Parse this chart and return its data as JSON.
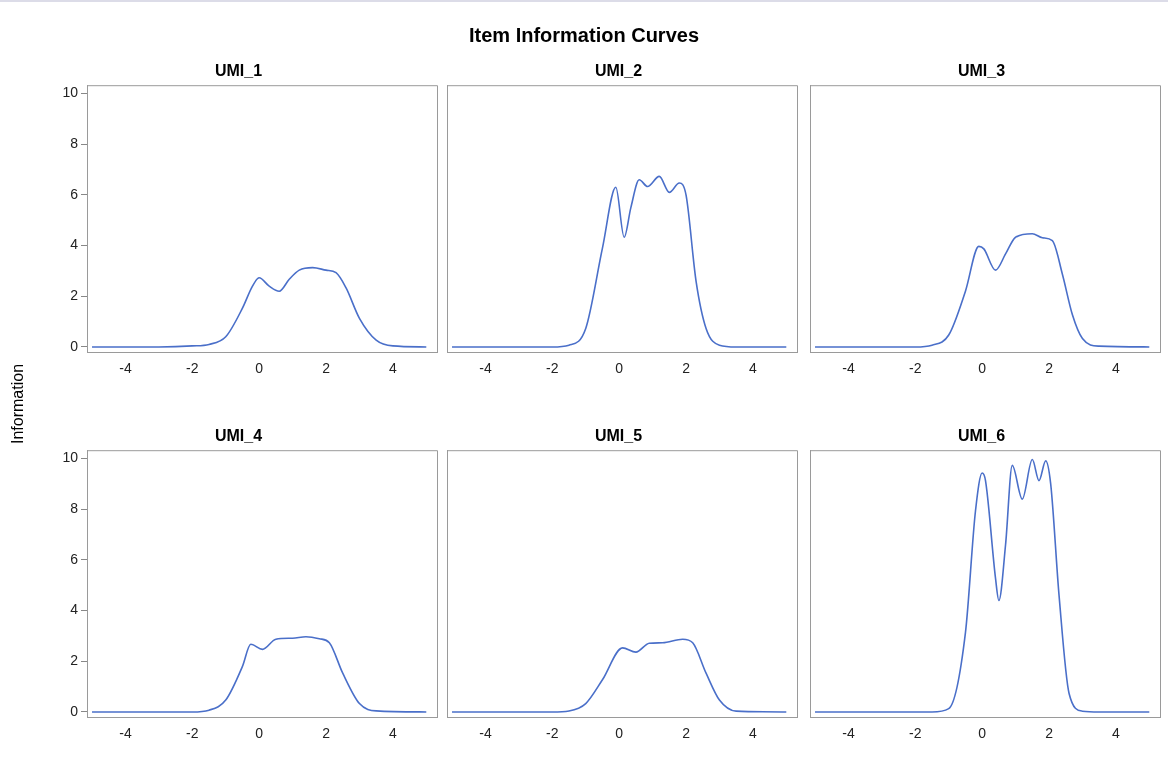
{
  "chart_data": [
    {
      "type": "line",
      "title": "UMI_1",
      "annotations": [
        "Item Information Curves"
      ],
      "ylabel": "Information",
      "color": "#4a6fc9",
      "grid": false,
      "legend": false,
      "marker": "none",
      "xlim": [
        -5.15,
        5.32
      ],
      "ylim": [
        -0.2,
        10.33
      ],
      "xticks": [
        -4,
        -2,
        0,
        2,
        4
      ],
      "yticks": [
        0,
        2,
        4,
        6,
        8,
        10
      ],
      "x": [
        -5,
        -3,
        -2,
        -1.5,
        -1,
        -0.5,
        -0.2,
        0,
        0.3,
        0.6,
        0.9,
        1.2,
        1.6,
        2,
        2.3,
        2.6,
        3,
        3.5,
        4,
        5
      ],
      "values": [
        0,
        0,
        0.04,
        0.1,
        0.4,
        1.53,
        2.4,
        2.73,
        2.4,
        2.2,
        2.67,
        3.03,
        3.13,
        3.03,
        2.93,
        2.33,
        1.13,
        0.27,
        0.04,
        0
      ]
    },
    {
      "type": "line",
      "title": "UMI_2",
      "color": "#4a6fc9",
      "grid": false,
      "legend": false,
      "marker": "none",
      "tick_labels": "x",
      "xlim": [
        -5.15,
        5.32
      ],
      "ylim": [
        -0.2,
        10.33
      ],
      "xticks": [
        -4,
        -2,
        0,
        2,
        4
      ],
      "yticks": [
        0,
        2,
        4,
        6,
        8,
        10
      ],
      "x": [
        -5,
        -2,
        -1.5,
        -1,
        -0.5,
        -0.1,
        0.15,
        0.35,
        0.6,
        0.85,
        1.2,
        1.5,
        1.8,
        2,
        2.3,
        2.6,
        3,
        3.5,
        5
      ],
      "values": [
        0,
        0,
        0.07,
        0.73,
        3.9,
        6.3,
        4.33,
        5.5,
        6.6,
        6.33,
        6.73,
        6.1,
        6.47,
        6,
        2.6,
        0.73,
        0.07,
        0,
        0
      ]
    },
    {
      "type": "line",
      "title": "UMI_3",
      "color": "#4a6fc9",
      "grid": false,
      "legend": false,
      "marker": "none",
      "tick_labels": "x",
      "xlim": [
        -5.15,
        5.32
      ],
      "ylim": [
        -0.2,
        10.33
      ],
      "xticks": [
        -4,
        -2,
        0,
        2,
        4
      ],
      "yticks": [
        0,
        2,
        4,
        6,
        8,
        10
      ],
      "x": [
        -5,
        -2,
        -1.5,
        -1,
        -0.5,
        -0.1,
        0.05,
        0.4,
        0.7,
        1,
        1.5,
        1.8,
        2.1,
        2.4,
        2.7,
        3,
        3.5,
        5
      ],
      "values": [
        0,
        0,
        0.07,
        0.47,
        2.2,
        3.97,
        3.87,
        3.03,
        3.67,
        4.33,
        4.47,
        4.31,
        4.2,
        2.87,
        1.27,
        0.33,
        0.03,
        0
      ]
    },
    {
      "type": "line",
      "title": "UMI_4",
      "color": "#4a6fc9",
      "grid": false,
      "legend": false,
      "marker": "none",
      "xlim": [
        -5.15,
        5.32
      ],
      "ylim": [
        -0.2,
        10.33
      ],
      "xticks": [
        -4,
        -2,
        0,
        2,
        4
      ],
      "yticks": [
        0,
        2,
        4,
        6,
        8,
        10
      ],
      "x": [
        -5,
        -2,
        -1.5,
        -1,
        -0.5,
        -0.25,
        0.1,
        0.5,
        1,
        1.4,
        1.8,
        2.1,
        2.5,
        3,
        3.5,
        5
      ],
      "values": [
        0,
        0,
        0.07,
        0.47,
        1.8,
        2.67,
        2.47,
        2.87,
        2.91,
        2.97,
        2.89,
        2.73,
        1.53,
        0.33,
        0.04,
        0
      ]
    },
    {
      "type": "line",
      "title": "UMI_5",
      "color": "#4a6fc9",
      "grid": false,
      "legend": false,
      "marker": "none",
      "tick_labels": "x",
      "xlim": [
        -5.15,
        5.32
      ],
      "ylim": [
        -0.2,
        10.33
      ],
      "xticks": [
        -4,
        -2,
        0,
        2,
        4
      ],
      "yticks": [
        0,
        2,
        4,
        6,
        8,
        10
      ],
      "x": [
        -5,
        -2,
        -1.5,
        -1,
        -0.5,
        0.1,
        0.5,
        0.9,
        1.3,
        1.9,
        2.2,
        2.6,
        3,
        3.5,
        5
      ],
      "values": [
        0,
        0,
        0.04,
        0.33,
        1.27,
        2.53,
        2.36,
        2.71,
        2.73,
        2.87,
        2.73,
        1.53,
        0.47,
        0.03,
        0
      ]
    },
    {
      "type": "line",
      "title": "UMI_6",
      "color": "#4a6fc9",
      "grid": false,
      "legend": false,
      "marker": "none",
      "tick_labels": "x",
      "xlim": [
        -5.15,
        5.32
      ],
      "ylim": [
        -0.2,
        10.33
      ],
      "xticks": [
        -4,
        -2,
        0,
        2,
        4
      ],
      "yticks": [
        0,
        2,
        4,
        6,
        8,
        10
      ],
      "x": [
        -5,
        -1.5,
        -1,
        -0.5,
        -0.2,
        0,
        0.1,
        0.4,
        0.5,
        0.7,
        0.9,
        1.2,
        1.5,
        1.7,
        1.9,
        2.05,
        2.3,
        2.6,
        3,
        3.5,
        5
      ],
      "values": [
        0,
        0,
        0.13,
        3.13,
        7.93,
        9.43,
        9.13,
        5.27,
        4.4,
        6.6,
        9.73,
        8.4,
        9.96,
        9.13,
        9.91,
        9,
        4.6,
        0.73,
        0.03,
        0,
        0
      ]
    }
  ]
}
